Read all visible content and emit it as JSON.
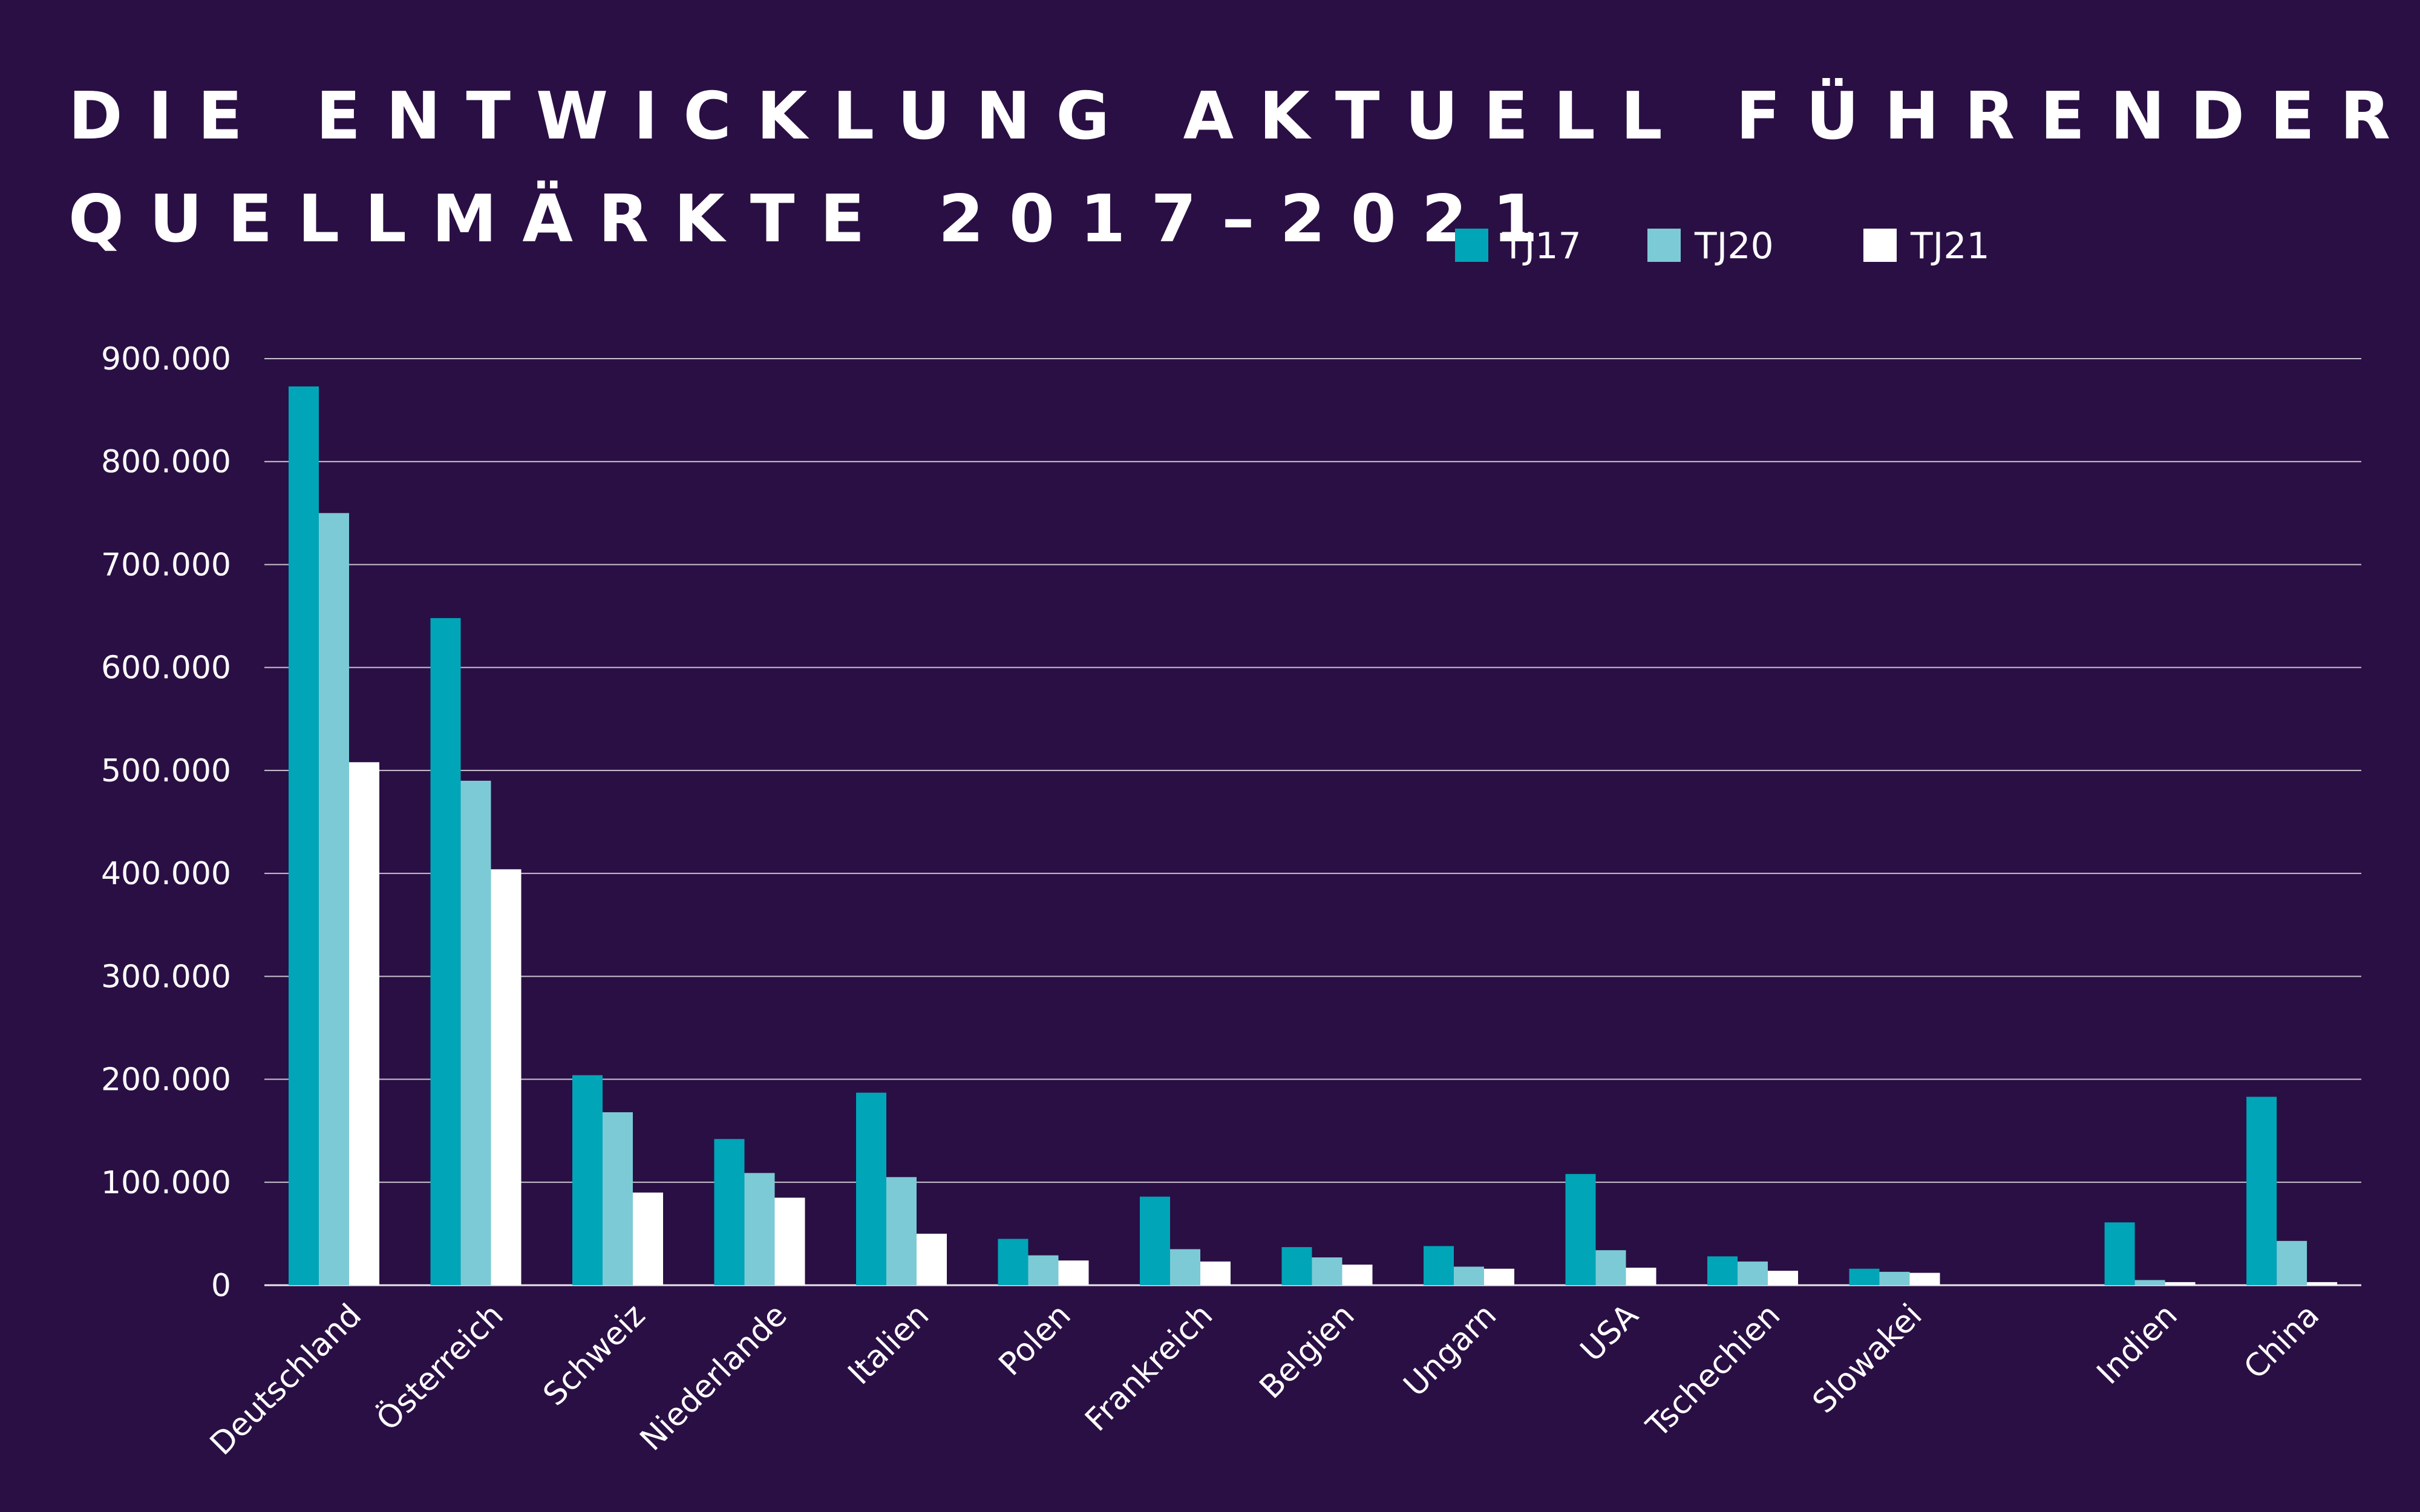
{
  "title_lines": [
    "DIE ENTWICKLUNG AKTUELL FÜHRENDER",
    "QUELLMÄRKTE 2017–2021"
  ],
  "colors": {
    "background": "#2a0f44",
    "TJ17": "#00a5b8",
    "TJ20": "#7ccad6",
    "TJ21": "#ffffff",
    "grid": "#ffffff",
    "text": "#ffffff"
  },
  "chart_data": {
    "type": "bar",
    "title": "DIE ENTWICKLUNG AKTUELL FÜHRENDER QUELLMÄRKTE 2017–2021",
    "xlabel": "",
    "ylabel": "",
    "ylim": [
      0,
      900000
    ],
    "yticks": [
      0,
      100000,
      200000,
      300000,
      400000,
      500000,
      600000,
      700000,
      800000,
      900000
    ],
    "ytick_labels": [
      "0",
      "100.000",
      "200.000",
      "300.000",
      "400.000",
      "500.000",
      "600.000",
      "700.000",
      "800.000",
      "900.000"
    ],
    "grid": true,
    "legend_position": "top-right",
    "categories": [
      "Deutschland",
      "Österreich",
      "Schweiz",
      "Niederlande",
      "Italien",
      "Polen",
      "Frankreich",
      "Belgien",
      "Ungarn",
      "USA",
      "Tschechien",
      "Slowakei",
      "Indien",
      "China"
    ],
    "series": [
      {
        "name": "TJ17",
        "values": [
          873000,
          648000,
          204000,
          142000,
          187000,
          45000,
          86000,
          37000,
          38000,
          108000,
          28000,
          16000,
          61000,
          183000
        ]
      },
      {
        "name": "TJ20",
        "values": [
          750000,
          490000,
          168000,
          109000,
          105000,
          29000,
          35000,
          27000,
          18000,
          34000,
          23000,
          13000,
          5000,
          43000
        ]
      },
      {
        "name": "TJ21",
        "values": [
          508000,
          404000,
          90000,
          85000,
          50000,
          24000,
          23000,
          20000,
          16000,
          17000,
          14000,
          12000,
          3000,
          3000
        ]
      }
    ]
  }
}
